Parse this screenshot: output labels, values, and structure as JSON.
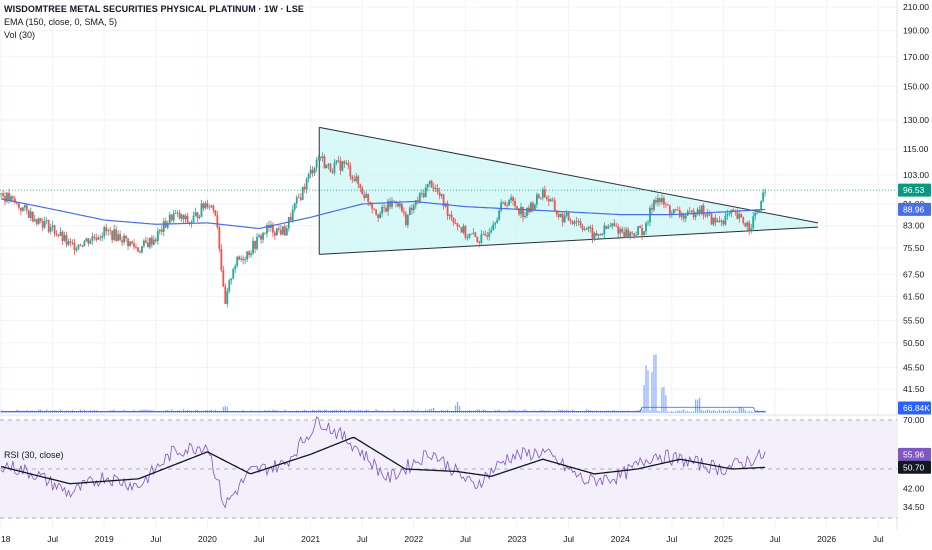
{
  "chart_data": {
    "type": "candlestick",
    "title": "WISDOMTREE METAL SECURITIES PHYSICAL PLATINUM · 1W · LSE",
    "indicators": {
      "ema_label": "EMA (150, close, 0, SMA, 5)",
      "vol_label": "Vol (30)",
      "rsi_label": "RSI (30, close)"
    },
    "price_axis": {
      "ticks": [
        "210.00",
        "190.00",
        "170.00",
        "150.00",
        "130.00",
        "115.00",
        "103.00",
        "91.00",
        "83.00",
        "75.50",
        "67.50",
        "61.50",
        "55.50",
        "50.50",
        "45.50",
        "41.50"
      ],
      "scale": "log",
      "current_price": "96.53",
      "ema_value": "88.96",
      "volume_value": "66.84K"
    },
    "rsi_axis": {
      "ticks": [
        "70.00",
        "50.00",
        "42.00",
        "34.50"
      ],
      "rsi_value": "55.96",
      "rsi_ma_value": "50.70"
    },
    "time_axis": {
      "ticks": [
        "18",
        "Jul",
        "2019",
        "Jul",
        "2020",
        "Jul",
        "2021",
        "Jul",
        "2022",
        "Jul",
        "2023",
        "Jul",
        "2024",
        "Jul",
        "2025",
        "Jul",
        "2026",
        "Jul"
      ]
    },
    "annotation": {
      "shape": "symmetrical triangle",
      "upper_start": {
        "date": "2021-02",
        "price": 126
      },
      "upper_end": {
        "date": "2025-12",
        "price": 84
      },
      "lower_start": {
        "date": "2021-02",
        "price": 73.5
      },
      "lower_end": {
        "date": "2025-12",
        "price": 82.5
      }
    },
    "price_path": [
      {
        "date": "2018-01",
        "price": 95
      },
      {
        "date": "2018-04",
        "price": 88
      },
      {
        "date": "2018-07",
        "price": 82
      },
      {
        "date": "2018-09",
        "price": 76
      },
      {
        "date": "2018-11",
        "price": 78
      },
      {
        "date": "2019-01",
        "price": 81
      },
      {
        "date": "2019-03",
        "price": 79
      },
      {
        "date": "2019-05",
        "price": 75
      },
      {
        "date": "2019-07",
        "price": 79
      },
      {
        "date": "2019-09",
        "price": 87
      },
      {
        "date": "2019-11",
        "price": 84
      },
      {
        "date": "2020-01",
        "price": 92
      },
      {
        "date": "2020-02",
        "price": 88
      },
      {
        "date": "2020-03",
        "price": 58
      },
      {
        "date": "2020-04",
        "price": 70
      },
      {
        "date": "2020-06",
        "price": 75
      },
      {
        "date": "2020-08",
        "price": 82
      },
      {
        "date": "2020-10",
        "price": 81
      },
      {
        "date": "2020-12",
        "price": 96
      },
      {
        "date": "2021-02",
        "price": 112
      },
      {
        "date": "2021-03",
        "price": 106
      },
      {
        "date": "2021-05",
        "price": 108
      },
      {
        "date": "2021-07",
        "price": 96
      },
      {
        "date": "2021-09",
        "price": 87
      },
      {
        "date": "2021-11",
        "price": 93
      },
      {
        "date": "2021-12",
        "price": 85
      },
      {
        "date": "2022-03",
        "price": 100
      },
      {
        "date": "2022-05",
        "price": 88
      },
      {
        "date": "2022-07",
        "price": 80
      },
      {
        "date": "2022-09",
        "price": 78
      },
      {
        "date": "2022-11",
        "price": 89
      },
      {
        "date": "2022-12",
        "price": 93
      },
      {
        "date": "2023-02",
        "price": 87
      },
      {
        "date": "2023-04",
        "price": 96
      },
      {
        "date": "2023-06",
        "price": 86
      },
      {
        "date": "2023-08",
        "price": 85
      },
      {
        "date": "2023-10",
        "price": 79
      },
      {
        "date": "2023-12",
        "price": 83
      },
      {
        "date": "2024-02",
        "price": 80
      },
      {
        "date": "2024-04",
        "price": 82
      },
      {
        "date": "2024-05",
        "price": 94
      },
      {
        "date": "2024-07",
        "price": 88
      },
      {
        "date": "2024-09",
        "price": 86
      },
      {
        "date": "2024-10",
        "price": 90
      },
      {
        "date": "2024-12",
        "price": 84
      },
      {
        "date": "2025-02",
        "price": 87
      },
      {
        "date": "2025-04",
        "price": 83
      },
      {
        "date": "2025-05",
        "price": 88
      },
      {
        "date": "2025-06",
        "price": 96.5
      }
    ],
    "ema_path": [
      {
        "date": "2018-01",
        "price": 93
      },
      {
        "date": "2018-07",
        "price": 89
      },
      {
        "date": "2019-01",
        "price": 85
      },
      {
        "date": "2019-07",
        "price": 83.5
      },
      {
        "date": "2020-01",
        "price": 84
      },
      {
        "date": "2020-07",
        "price": 82
      },
      {
        "date": "2021-01",
        "price": 86
      },
      {
        "date": "2021-07",
        "price": 91
      },
      {
        "date": "2022-01",
        "price": 92
      },
      {
        "date": "2022-07",
        "price": 90
      },
      {
        "date": "2023-01",
        "price": 89
      },
      {
        "date": "2023-07",
        "price": 88
      },
      {
        "date": "2024-01",
        "price": 87
      },
      {
        "date": "2024-07",
        "price": 87
      },
      {
        "date": "2025-01",
        "price": 88
      },
      {
        "date": "2025-06",
        "price": 88.96
      }
    ],
    "rsi_path": [
      {
        "date": "2018-01",
        "value": 52
      },
      {
        "date": "2018-05",
        "value": 48
      },
      {
        "date": "2018-09",
        "value": 40
      },
      {
        "date": "2019-01",
        "value": 47
      },
      {
        "date": "2019-05",
        "value": 43
      },
      {
        "date": "2019-09",
        "value": 57
      },
      {
        "date": "2020-01",
        "value": 60
      },
      {
        "date": "2020-03",
        "value": 35
      },
      {
        "date": "2020-06",
        "value": 49
      },
      {
        "date": "2020-10",
        "value": 52
      },
      {
        "date": "2021-02",
        "value": 70
      },
      {
        "date": "2021-06",
        "value": 60
      },
      {
        "date": "2021-10",
        "value": 46
      },
      {
        "date": "2022-03",
        "value": 57
      },
      {
        "date": "2022-08",
        "value": 43
      },
      {
        "date": "2022-12",
        "value": 55
      },
      {
        "date": "2023-04",
        "value": 57
      },
      {
        "date": "2023-09",
        "value": 45
      },
      {
        "date": "2024-01",
        "value": 47
      },
      {
        "date": "2024-05",
        "value": 56
      },
      {
        "date": "2024-09",
        "value": 53
      },
      {
        "date": "2025-01",
        "value": 50
      },
      {
        "date": "2025-06",
        "value": 55.96
      }
    ],
    "rsi_ma_path": [
      {
        "date": "2018-01",
        "value": 51
      },
      {
        "date": "2018-09",
        "value": 44
      },
      {
        "date": "2019-05",
        "value": 46
      },
      {
        "date": "2020-01",
        "value": 57
      },
      {
        "date": "2020-06",
        "value": 48
      },
      {
        "date": "2021-01",
        "value": 56
      },
      {
        "date": "2021-06",
        "value": 63
      },
      {
        "date": "2021-12",
        "value": 50
      },
      {
        "date": "2022-06",
        "value": 49
      },
      {
        "date": "2022-10",
        "value": 47
      },
      {
        "date": "2023-04",
        "value": 54
      },
      {
        "date": "2023-10",
        "value": 48
      },
      {
        "date": "2024-03",
        "value": 50
      },
      {
        "date": "2024-08",
        "value": 54
      },
      {
        "date": "2025-02",
        "value": 50
      },
      {
        "date": "2025-06",
        "value": 50.7
      }
    ],
    "volume_spikes": [
      {
        "date": "2018-02",
        "volume": 0.02
      },
      {
        "date": "2020-03",
        "volume": 0.06
      },
      {
        "date": "2022-03",
        "volume": 0.05
      },
      {
        "date": "2022-06",
        "volume": 0.1
      },
      {
        "date": "2024-04",
        "volume": 0.38
      },
      {
        "date": "2024-05",
        "volume": 0.55
      },
      {
        "date": "2024-06",
        "volume": 0.24
      },
      {
        "date": "2024-10",
        "volume": 0.17
      },
      {
        "date": "2025-03",
        "volume": 0.05
      }
    ],
    "colors": {
      "up": "#26a69a",
      "down": "#ef5350",
      "ema": "#4a6fe3",
      "triangle_fill": "#ccf5f5",
      "triangle_stroke": "#2a2e39",
      "rsi_line": "#7e57c2",
      "rsi_ma": "#131722",
      "rsi_band": "#f3effb",
      "volume": "#2962ff",
      "price_tag": "#089981",
      "ema_tag": "#4a6fe3",
      "rsi_tag": "#7e57c2",
      "rsi_ma_tag": "#131722",
      "vol_tag": "#2962ff"
    }
  }
}
